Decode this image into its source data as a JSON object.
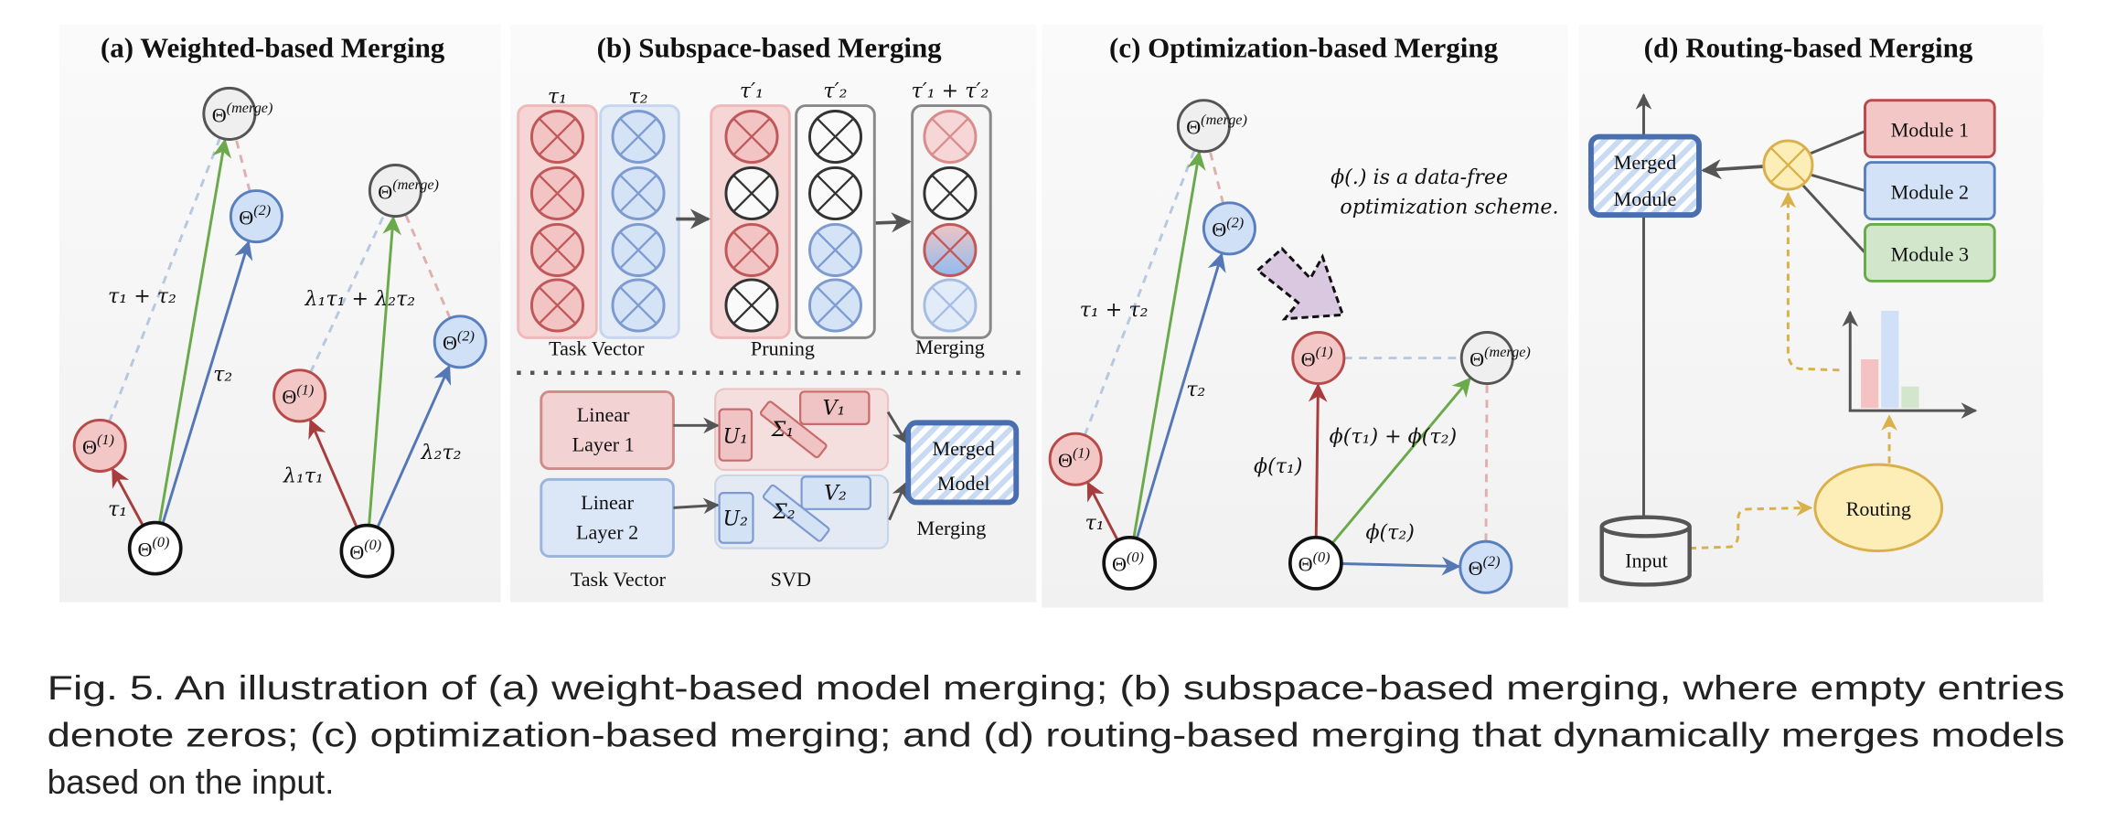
{
  "panels": {
    "a": {
      "title": "(a) Weighted-based Merging",
      "label_sum": "τ₁ + τ₂",
      "label_t2": "τ₂",
      "label_t1": "τ₁",
      "label_wsum": "λ₁τ₁ + λ₂τ₂",
      "label_l2t2": "λ₂τ₂",
      "label_l1t1": "λ₁τ₁"
    },
    "b": {
      "title": "(b) Subspace-based Merging",
      "col_t1": "τ₁",
      "col_t2": "τ₂",
      "col_t1p": "τ′₁",
      "col_t2p": "τ′₂",
      "col_sum": "τ′₁ + τ′₂",
      "task_vector": "Task Vector",
      "pruning": "Pruning",
      "merging": "Merging",
      "linear1_l1": "Linear",
      "linear1_l2": "Layer 1",
      "linear2_l1": "Linear",
      "linear2_l2": "Layer 2",
      "u1": "U₁",
      "s1": "Σ₁",
      "v1": "V₁",
      "u2": "U₂",
      "s2": "Σ₂",
      "v2": "V₂",
      "merged_l1": "Merged",
      "merged_l2": "Model",
      "merging2": "Merging",
      "task_vector2": "Task Vector",
      "svd": "SVD"
    },
    "c": {
      "title": "(c) Optimization-based Merging",
      "label_sum": "τ₁ + τ₂",
      "label_t2": "τ₂",
      "label_t1": "τ₁",
      "note_l1": "ϕ(.) is a data-free",
      "note_l2": "optimization scheme.",
      "label_phisum": "ϕ(τ₁) + ϕ(τ₂)",
      "label_phi1": "ϕ(τ₁)",
      "label_phi2": "ϕ(τ₂)"
    },
    "d": {
      "title": "(d) Routing-based Merging",
      "merged_l1": "Merged",
      "merged_l2": "Module",
      "module1": "Module 1",
      "module2": "Module 2",
      "module3": "Module 3",
      "routing": "Routing",
      "input": "Input",
      "router_weights": [
        0.5,
        1.0,
        0.22
      ]
    }
  },
  "nodes": {
    "n0": {
      "base": "Θ",
      "sup": "(0)"
    },
    "n1": {
      "base": "Θ",
      "sup": "(1)"
    },
    "n2": {
      "base": "Θ",
      "sup": "(2)"
    },
    "nm": {
      "base": "Θ",
      "sup": "(merge)"
    }
  },
  "caption": {
    "line1": "Fig. 5.  An illustration of (a) weight-based model merging; (b) subspace-based merging, where empty entries",
    "line2": "denote zeros; (c) optimization-based merging; and (d) routing-based merging that dynamically merges models",
    "line3": "based on the input."
  },
  "colors": {
    "red": "#b84a4a",
    "blue": "#5a7fbf",
    "green": "#6aaa4a",
    "yellow": "#d9b04a",
    "gray": "#555555"
  }
}
